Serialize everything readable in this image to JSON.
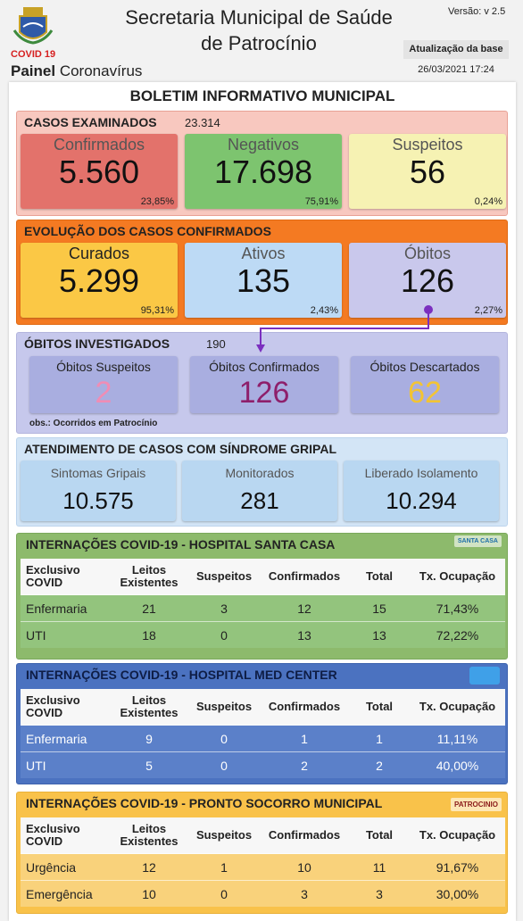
{
  "header": {
    "title_line1": "Secretaria Municipal de Saúde",
    "title_line2": "de Patrocínio",
    "version": "Versão: v 2.5",
    "logo_label": "COVID 19",
    "panel_bold": "Painel",
    "panel_rest": "Coronavírus",
    "update_label": "Atualização da base",
    "update_date": "26/03/2021 17:24"
  },
  "bulletin_title": "BOLETIM INFORMATIVO MUNICIPAL",
  "casos": {
    "title": "CASOS EXAMINADOS",
    "total": "23.314",
    "cards": [
      {
        "label": "Confirmados",
        "value": "5.560",
        "pct": "23,85%"
      },
      {
        "label": "Negativos",
        "value": "17.698",
        "pct": "75,91%"
      },
      {
        "label": "Suspeitos",
        "value": "56",
        "pct": "0,24%"
      }
    ]
  },
  "evolucao": {
    "title": "EVOLUÇÃO DOS CASOS CONFIRMADOS",
    "cards": [
      {
        "label": "Curados",
        "value": "5.299",
        "pct": "95,31%"
      },
      {
        "label": "Ativos",
        "value": "135",
        "pct": "2,43%"
      },
      {
        "label": "Óbitos",
        "value": "126",
        "pct": "2,27%"
      }
    ]
  },
  "obitos": {
    "title": "ÓBITOS INVESTIGADOS",
    "total": "190",
    "cards": [
      {
        "label": "Óbitos Suspeitos",
        "value": "2"
      },
      {
        "label": "Óbitos Confirmados",
        "value": "126"
      },
      {
        "label": "Óbitos Descartados",
        "value": "62"
      }
    ],
    "note": "obs.: Ocorridos em Patrocínio"
  },
  "atendimento": {
    "title": "ATENDIMENTO DE CASOS COM SÍNDROME GRIPAL",
    "cards": [
      {
        "label": "Sintomas Gripais",
        "value": "10.575"
      },
      {
        "label": "Monitorados",
        "value": "281"
      },
      {
        "label": "Liberado Isolamento",
        "value": "10.294"
      }
    ]
  },
  "hospitals": [
    {
      "title": "INTERNAÇÕES COVID-19 - HOSPITAL SANTA CASA",
      "logo_text": "SANTA CASA",
      "header": [
        "Exclusivo COVID",
        "Leitos Existentes",
        "Suspeitos",
        "Confirmados",
        "Total",
        "Tx. Ocupação"
      ],
      "rows": [
        [
          "Enfermaria",
          "21",
          "3",
          "12",
          "15",
          "71,43%"
        ],
        [
          "UTI",
          "18",
          "0",
          "13",
          "13",
          "72,22%"
        ]
      ]
    },
    {
      "title": "INTERNAÇÕES COVID-19 - HOSPITAL MED CENTER",
      "header": [
        "Exclusivo COVID",
        "Leitos Existentes",
        "Suspeitos",
        "Confirmados",
        "Total",
        "Tx. Ocupação"
      ],
      "rows": [
        [
          "Enfermaria",
          "9",
          "0",
          "1",
          "1",
          "11,11%"
        ],
        [
          "UTI",
          "5",
          "0",
          "2",
          "2",
          "40,00%"
        ]
      ]
    },
    {
      "title": "INTERNAÇÕES COVID-19 - PRONTO SOCORRO MUNICIPAL",
      "logo_text": "PATROCINIO",
      "header": [
        "Exclusivo COVID",
        "Leitos Existentes",
        "Suspeitos",
        "Confirmados",
        "Total",
        "Tx. Ocupação"
      ],
      "rows": [
        [
          "Urgência",
          "12",
          "1",
          "10",
          "11",
          "91,67%"
        ],
        [
          "Emergência",
          "10",
          "0",
          "3",
          "3",
          "30,00%"
        ]
      ]
    }
  ]
}
